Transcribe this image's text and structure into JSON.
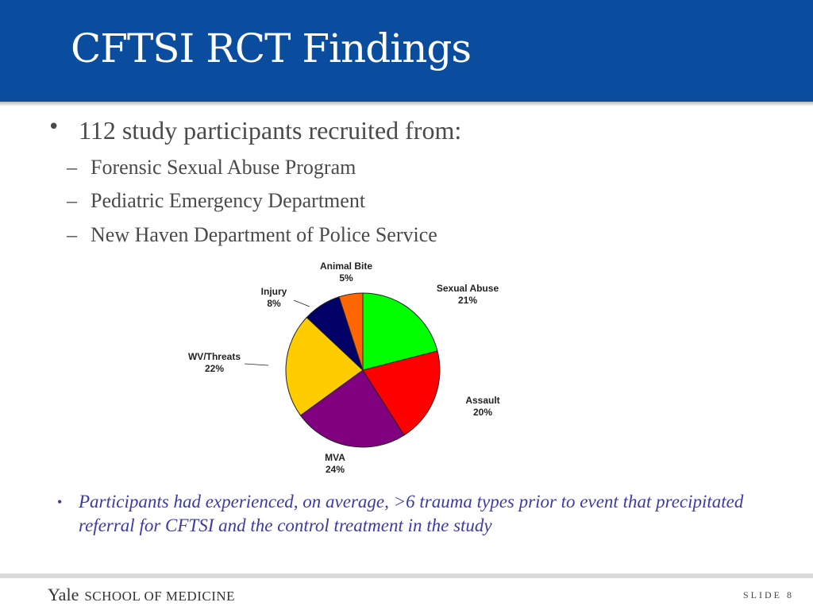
{
  "slide": {
    "title": "CFTSI RCT Findings",
    "bullet": "112 study participants recruited from:",
    "sub_items": [
      "Forensic Sexual Abuse Program",
      "Pediatric Emergency Department",
      "New Haven Department of Police Service"
    ],
    "dash": "–",
    "bullet_glyph": "•",
    "note": "Participants had experienced, on average, >6 trauma types prior to event that precipitated referral for CFTSI and the control treatment in the study",
    "footer_yale": "Yale",
    "footer_school": "SCHOOL OF MEDICINE",
    "slide_label": "SLIDE 8"
  },
  "colors": {
    "title_bar": "#0a4d9e",
    "note_text": "#3b3ba8"
  },
  "chart_data": {
    "type": "pie",
    "title": "",
    "slices": [
      {
        "label": "Sexual Abuse",
        "value": 21,
        "pct_label": "21%",
        "color": "#00ff00"
      },
      {
        "label": "Assault",
        "value": 20,
        "pct_label": "20%",
        "color": "#ff0000"
      },
      {
        "label": "MVA",
        "value": 24,
        "pct_label": "24%",
        "color": "#800080"
      },
      {
        "label": "WV/Threats",
        "value": 22,
        "pct_label": "22%",
        "color": "#ffcc00"
      },
      {
        "label": "Injury",
        "value": 8,
        "pct_label": "8%",
        "color": "#000066"
      },
      {
        "label": "Animal Bite",
        "value": 5,
        "pct_label": "5%",
        "color": "#ff6600"
      }
    ],
    "start": "12 o'clock",
    "direction": "clockwise",
    "legend": "none"
  }
}
